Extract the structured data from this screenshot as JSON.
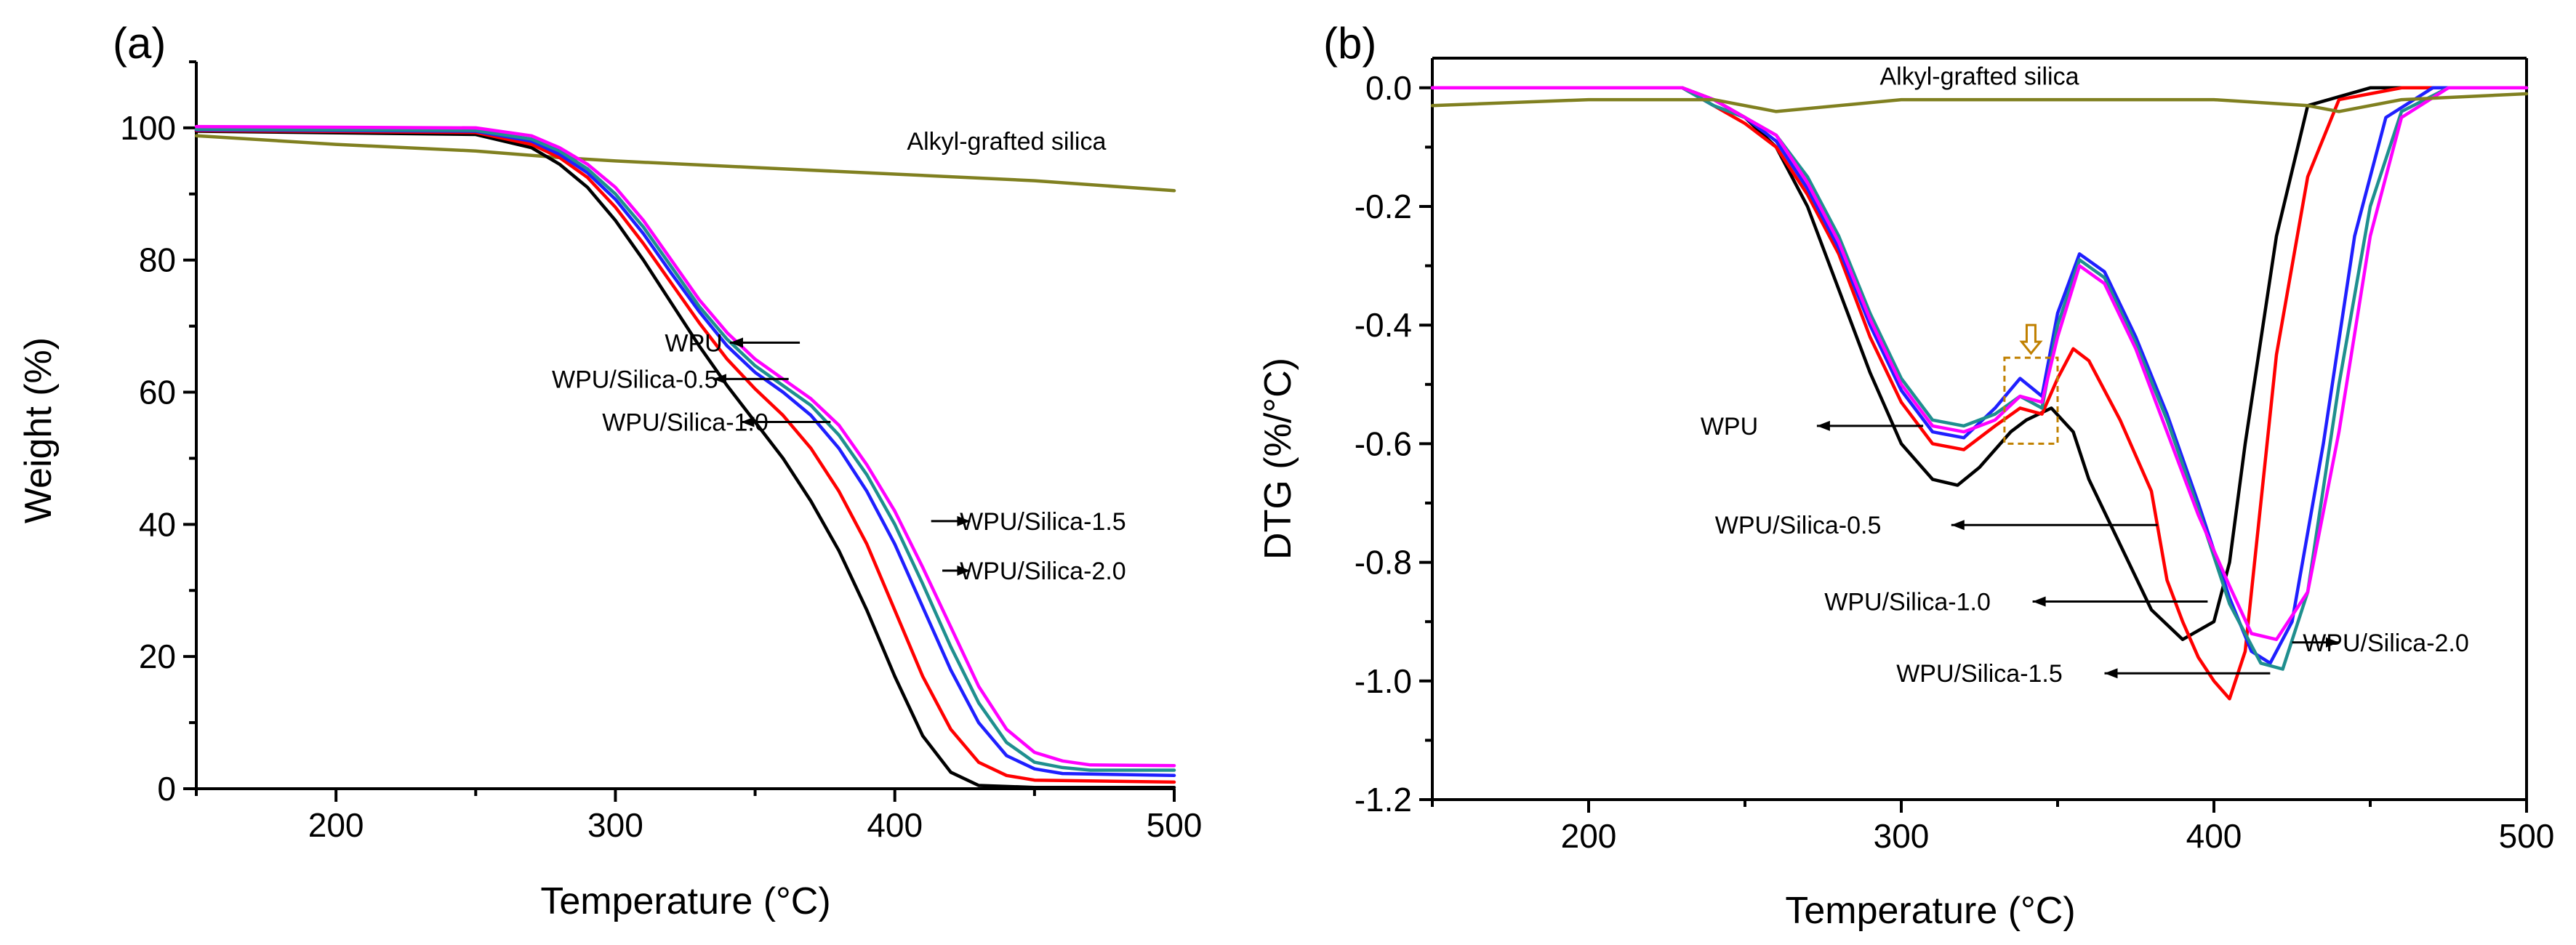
{
  "colors": {
    "WPU": "#000000",
    "WPU/Silica-0.5": "#ff0000",
    "WPU/Silica-1.0": "#1f1fff",
    "WPU/Silica-1.5": "#1f8f8f",
    "WPU/Silica-2.0": "#ff00ff",
    "Alkyl-grafted silica": "#808020",
    "highlight": "#c08000"
  },
  "chart_data": [
    {
      "id": "a",
      "panel_label": "(a)",
      "type": "line",
      "xlabel": "Temperature (°C)",
      "ylabel": "Weight (%)",
      "xlim": [
        150,
        500
      ],
      "ylim": [
        0,
        110
      ],
      "xticks": [
        200,
        300,
        400,
        500
      ],
      "yticks": [
        0,
        20,
        40,
        60,
        80,
        100
      ],
      "series": [
        {
          "name": "Alkyl-grafted silica",
          "x": [
            150,
            200,
            250,
            280,
            300,
            350,
            400,
            450,
            500
          ],
          "y": [
            98.8,
            97.5,
            96.5,
            95.5,
            95.0,
            94.0,
            93.0,
            92.0,
            90.5
          ]
        },
        {
          "name": "WPU",
          "x": [
            150,
            250,
            270,
            280,
            290,
            300,
            310,
            320,
            330,
            340,
            350,
            360,
            370,
            380,
            390,
            400,
            410,
            420,
            430,
            450,
            500
          ],
          "y": [
            99.5,
            99.0,
            97.0,
            94.5,
            91.0,
            86.0,
            80.0,
            73.5,
            67.0,
            61.0,
            55.5,
            50.0,
            43.5,
            36.0,
            27.0,
            17.0,
            8.0,
            2.5,
            0.5,
            0.2,
            0.2
          ]
        },
        {
          "name": "WPU/Silica-0.5",
          "x": [
            150,
            250,
            270,
            280,
            290,
            300,
            310,
            320,
            330,
            340,
            350,
            360,
            370,
            380,
            390,
            400,
            410,
            420,
            430,
            440,
            450,
            500
          ],
          "y": [
            99.6,
            99.3,
            97.5,
            95.5,
            92.5,
            88.0,
            82.5,
            76.5,
            70.5,
            65.0,
            60.5,
            56.5,
            51.5,
            45.0,
            37.0,
            27.0,
            17.0,
            9.0,
            4.0,
            2.0,
            1.3,
            1.0
          ]
        },
        {
          "name": "WPU/Silica-1.0",
          "x": [
            150,
            250,
            270,
            280,
            290,
            300,
            310,
            320,
            330,
            340,
            350,
            360,
            370,
            380,
            390,
            400,
            410,
            420,
            430,
            440,
            450,
            460,
            500
          ],
          "y": [
            99.7,
            99.5,
            98.0,
            96.0,
            93.2,
            89.2,
            84.0,
            78.0,
            72.2,
            67.0,
            63.0,
            60.0,
            56.5,
            51.5,
            45.0,
            37.0,
            27.5,
            18.0,
            10.0,
            5.0,
            3.0,
            2.3,
            2.0
          ]
        },
        {
          "name": "WPU/Silica-1.5",
          "x": [
            150,
            250,
            270,
            280,
            290,
            300,
            310,
            320,
            330,
            340,
            350,
            360,
            370,
            380,
            390,
            400,
            410,
            420,
            430,
            440,
            450,
            460,
            470,
            500
          ],
          "y": [
            99.8,
            99.6,
            98.3,
            96.5,
            93.8,
            90.0,
            85.0,
            79.0,
            73.0,
            68.0,
            64.0,
            61.0,
            58.0,
            53.5,
            47.5,
            40.0,
            31.0,
            21.5,
            13.0,
            7.0,
            4.0,
            3.2,
            2.8,
            2.8
          ]
        },
        {
          "name": "WPU/Silica-2.0",
          "x": [
            150,
            250,
            270,
            280,
            290,
            300,
            310,
            320,
            330,
            340,
            350,
            360,
            370,
            380,
            390,
            400,
            410,
            420,
            430,
            440,
            450,
            460,
            470,
            500
          ],
          "y": [
            100.2,
            100.0,
            98.8,
            97.0,
            94.5,
            91.0,
            86.0,
            80.0,
            74.0,
            69.0,
            65.0,
            62.0,
            59.0,
            55.0,
            49.0,
            42.0,
            33.5,
            24.5,
            15.5,
            9.0,
            5.5,
            4.2,
            3.6,
            3.5
          ]
        }
      ],
      "annotations": [
        {
          "text": "Alkyl-grafted silica",
          "x": 440,
          "y": 98
        },
        {
          "text": "WPU",
          "label_x": 328,
          "label_y": 67.5,
          "arrow_from": [
            366,
            67.5
          ],
          "arrow_to": [
            341,
            67.5
          ]
        },
        {
          "text": "WPU/Silica-0.5",
          "label_x": 307,
          "label_y": 62,
          "arrow_from": [
            362,
            62
          ],
          "arrow_to": [
            335,
            62
          ]
        },
        {
          "text": "WPU/Silica-1.0",
          "label_x": 325,
          "label_y": 55.5,
          "arrow_from": [
            377,
            55.5
          ],
          "arrow_to": [
            345,
            55.5
          ]
        },
        {
          "text": "WPU/Silica-1.5",
          "label_x": 453,
          "label_y": 40.5,
          "arrow_from": [
            413,
            40.5
          ],
          "arrow_to": [
            427,
            40.5
          ]
        },
        {
          "text": "WPU/Silica-2.0",
          "label_x": 453,
          "label_y": 33,
          "arrow_from": [
            417,
            33
          ],
          "arrow_to": [
            427,
            33
          ]
        }
      ]
    },
    {
      "id": "b",
      "panel_label": "(b)",
      "type": "line",
      "xlabel": "Temperature (°C)",
      "ylabel": "DTG (%/°C)",
      "xlim": [
        150,
        500
      ],
      "ylim": [
        -1.2,
        0.05
      ],
      "xticks": [
        200,
        300,
        400,
        500
      ],
      "yticks": [
        0.0,
        -0.2,
        -0.4,
        -0.6,
        -0.8,
        -1.0,
        -1.2
      ],
      "series": [
        {
          "name": "WPU",
          "x": [
            150,
            230,
            240,
            250,
            260,
            270,
            280,
            290,
            300,
            310,
            318,
            325,
            335,
            340,
            348,
            355,
            360,
            370,
            380,
            390,
            400,
            405,
            410,
            420,
            430,
            450,
            500
          ],
          "y": [
            0.0,
            0.0,
            -0.02,
            -0.05,
            -0.1,
            -0.2,
            -0.34,
            -0.48,
            -0.6,
            -0.66,
            -0.67,
            -0.64,
            -0.58,
            -0.56,
            -0.54,
            -0.58,
            -0.66,
            -0.77,
            -0.88,
            -0.93,
            -0.9,
            -0.8,
            -0.6,
            -0.25,
            -0.03,
            0.0,
            0.0
          ]
        },
        {
          "name": "WPU/Silica-0.5",
          "x": [
            150,
            230,
            240,
            250,
            260,
            270,
            280,
            290,
            300,
            310,
            320,
            330,
            338,
            345,
            350,
            355,
            360,
            370,
            380,
            385,
            390,
            395,
            400,
            405,
            410,
            415,
            420,
            430,
            440,
            460,
            500
          ],
          "y": [
            0.0,
            0.0,
            -0.03,
            -0.06,
            -0.1,
            -0.18,
            -0.28,
            -0.42,
            -0.53,
            -0.6,
            -0.61,
            -0.57,
            -0.54,
            -0.55,
            -0.49,
            -0.44,
            -0.46,
            -0.56,
            -0.68,
            -0.83,
            -0.9,
            -0.96,
            -1.0,
            -1.03,
            -0.95,
            -0.7,
            -0.45,
            -0.15,
            -0.02,
            0.0,
            0.0
          ]
        },
        {
          "name": "WPU/Silica-1.0",
          "x": [
            150,
            230,
            240,
            250,
            260,
            270,
            280,
            290,
            300,
            310,
            320,
            330,
            338,
            345,
            350,
            357,
            365,
            375,
            385,
            395,
            405,
            412,
            418,
            425,
            435,
            445,
            455,
            470,
            500
          ],
          "y": [
            0.0,
            0.0,
            -0.03,
            -0.05,
            -0.09,
            -0.17,
            -0.27,
            -0.4,
            -0.51,
            -0.58,
            -0.59,
            -0.54,
            -0.49,
            -0.52,
            -0.38,
            -0.28,
            -0.31,
            -0.42,
            -0.55,
            -0.7,
            -0.86,
            -0.95,
            -0.97,
            -0.9,
            -0.6,
            -0.25,
            -0.05,
            0.0,
            0.0
          ]
        },
        {
          "name": "WPU/Silica-1.5",
          "x": [
            150,
            230,
            240,
            250,
            260,
            270,
            280,
            290,
            300,
            310,
            320,
            330,
            338,
            345,
            350,
            357,
            365,
            375,
            385,
            395,
            405,
            415,
            422,
            430,
            440,
            450,
            460,
            475,
            500
          ],
          "y": [
            0.0,
            0.0,
            -0.03,
            -0.05,
            -0.08,
            -0.15,
            -0.25,
            -0.38,
            -0.49,
            -0.56,
            -0.57,
            -0.55,
            -0.52,
            -0.54,
            -0.4,
            -0.29,
            -0.32,
            -0.43,
            -0.56,
            -0.71,
            -0.87,
            -0.97,
            -0.98,
            -0.85,
            -0.5,
            -0.2,
            -0.04,
            0.0,
            0.0
          ]
        },
        {
          "name": "WPU/Silica-2.0",
          "x": [
            150,
            230,
            240,
            250,
            260,
            270,
            280,
            290,
            300,
            310,
            320,
            330,
            338,
            345,
            350,
            357,
            365,
            375,
            385,
            395,
            405,
            412,
            420,
            430,
            440,
            450,
            460,
            475,
            500
          ],
          "y": [
            0.0,
            0.0,
            -0.02,
            -0.05,
            -0.08,
            -0.16,
            -0.26,
            -0.39,
            -0.5,
            -0.57,
            -0.58,
            -0.56,
            -0.52,
            -0.53,
            -0.42,
            -0.3,
            -0.33,
            -0.44,
            -0.58,
            -0.72,
            -0.84,
            -0.92,
            -0.93,
            -0.85,
            -0.58,
            -0.25,
            -0.05,
            0.0,
            0.0
          ]
        },
        {
          "name": "Alkyl-grafted silica",
          "x": [
            150,
            200,
            240,
            260,
            300,
            350,
            400,
            430,
            440,
            460,
            500
          ],
          "y": [
            -0.03,
            -0.02,
            -0.02,
            -0.04,
            -0.02,
            -0.02,
            -0.02,
            -0.03,
            -0.04,
            -0.02,
            -0.01
          ]
        }
      ],
      "annotations": [
        {
          "text": "Alkyl-grafted silica",
          "x": 325,
          "y": 0.02
        },
        {
          "text": "WPU",
          "label_x": 245,
          "label_y": -0.57,
          "arrow_from": [
            307,
            -0.57
          ],
          "arrow_to": [
            273,
            -0.57
          ]
        },
        {
          "text": "WPU/Silica-0.5",
          "label_x": 267,
          "label_y": -0.737,
          "arrow_from": [
            382,
            -0.737
          ],
          "arrow_to": [
            316,
            -0.737
          ]
        },
        {
          "text": "WPU/Silica-1.0",
          "label_x": 302,
          "label_y": -0.866,
          "arrow_from": [
            398,
            -0.866
          ],
          "arrow_to": [
            342,
            -0.866
          ]
        },
        {
          "text": "WPU/Silica-1.5",
          "label_x": 325,
          "label_y": -0.987,
          "arrow_from": [
            418,
            -0.987
          ],
          "arrow_to": [
            365,
            -0.987
          ]
        },
        {
          "text": "WPU/Silica-2.0",
          "label_x": 455,
          "label_y": -0.935,
          "arrow_from": [
            425,
            -0.935
          ],
          "arrow_to": [
            440,
            -0.935
          ]
        }
      ],
      "highlight_box": {
        "x": [
          333,
          350
        ],
        "y": [
          -0.6,
          -0.455
        ]
      }
    }
  ]
}
